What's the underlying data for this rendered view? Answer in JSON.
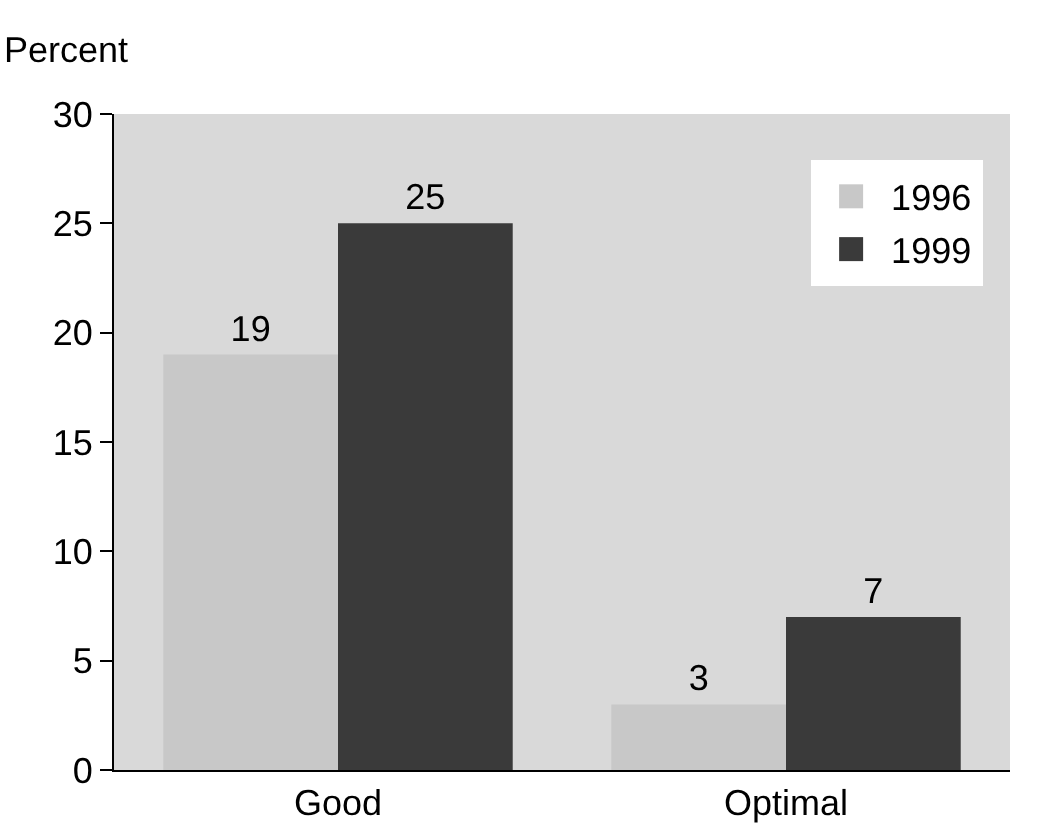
{
  "chart_data": {
    "type": "bar",
    "ylabel": "Percent",
    "categories": [
      "Good",
      "Optimal"
    ],
    "series": [
      {
        "name": "1996",
        "color": "#c8c8c8",
        "values": [
          19,
          3
        ]
      },
      {
        "name": "1999",
        "color": "#3a3a3a",
        "values": [
          25,
          7
        ]
      }
    ],
    "ylim": [
      0,
      30
    ],
    "yticks": [
      0,
      5,
      10,
      15,
      20,
      25,
      30
    ],
    "grid": false,
    "legend": "top right",
    "data_labels": true
  }
}
